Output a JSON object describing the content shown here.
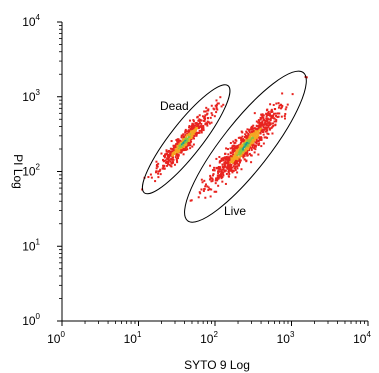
{
  "chart_data": {
    "type": "scatter",
    "title": "",
    "xlabel": "SYTO 9 Log",
    "ylabel": "PI Log",
    "xscale": "log",
    "yscale": "log",
    "xlim": [
      1,
      10000
    ],
    "ylim": [
      1,
      10000
    ],
    "x_ticks": [
      {
        "base": "10",
        "exp": "0"
      },
      {
        "base": "10",
        "exp": "1"
      },
      {
        "base": "10",
        "exp": "2"
      },
      {
        "base": "10",
        "exp": "3"
      },
      {
        "base": "10",
        "exp": "4"
      }
    ],
    "y_ticks": [
      {
        "base": "10",
        "exp": "0"
      },
      {
        "base": "10",
        "exp": "1"
      },
      {
        "base": "10",
        "exp": "2"
      },
      {
        "base": "10",
        "exp": "3"
      },
      {
        "base": "10",
        "exp": "4"
      }
    ],
    "grid": false,
    "legend": "none",
    "series": [
      {
        "name": "Dead",
        "center": [
          40,
          250
        ],
        "color": "#e8231f",
        "density_colors": [
          "#e8231f",
          "#f5a623",
          "#8cc63f",
          "#1a9e8f"
        ]
      },
      {
        "name": "Live",
        "center": [
          250,
          220
        ],
        "color": "#e8231f",
        "density_colors": [
          "#e8231f",
          "#f5a623",
          "#8cc63f",
          "#1a9e8f"
        ]
      }
    ],
    "gates": [
      {
        "name": "Dead",
        "label": "Dead"
      },
      {
        "name": "Live",
        "label": "Live"
      }
    ]
  }
}
